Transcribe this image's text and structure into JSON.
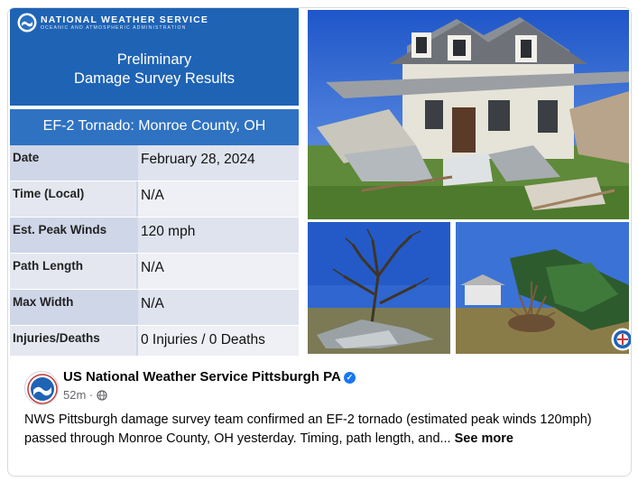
{
  "graphic": {
    "org_name": "NATIONAL WEATHER SERVICE",
    "org_sub": "OCEANIC AND ATMOSPHERIC ADMINISTRATION",
    "title_line1": "Preliminary",
    "title_line2": "Damage Survey Results",
    "event_title": "EF-2 Tornado: Monroe County, OH",
    "rows": [
      {
        "label": "Date",
        "value": "February 28, 2024"
      },
      {
        "label": "Time (Local)",
        "value": "N/A"
      },
      {
        "label": "Est. Peak Winds",
        "value": "120 mph"
      },
      {
        "label": "Path Length",
        "value": "N/A"
      },
      {
        "label": "Max Width",
        "value": "N/A"
      },
      {
        "label": "Injuries/Deaths",
        "value": "0 Injuries / 0 Deaths"
      }
    ],
    "photos": [
      "damaged-house-photo",
      "downed-tree-photo",
      "uprooted-tree-photo"
    ]
  },
  "post": {
    "author": "US National Weather Service Pittsburgh PA",
    "verified": true,
    "time": "52m",
    "separator": "·",
    "text": "NWS Pittsburgh damage survey team confirmed an EF-2  tornado (estimated peak winds 120mph) passed through  Monroe County, OH yesterday. Timing, path length, and...",
    "see_more": "See more"
  },
  "colors": {
    "nws_blue": "#1f63b5",
    "event_blue": "#2f72c2",
    "label_cell": "#cfd6e8",
    "verified_blue": "#1877f2"
  }
}
